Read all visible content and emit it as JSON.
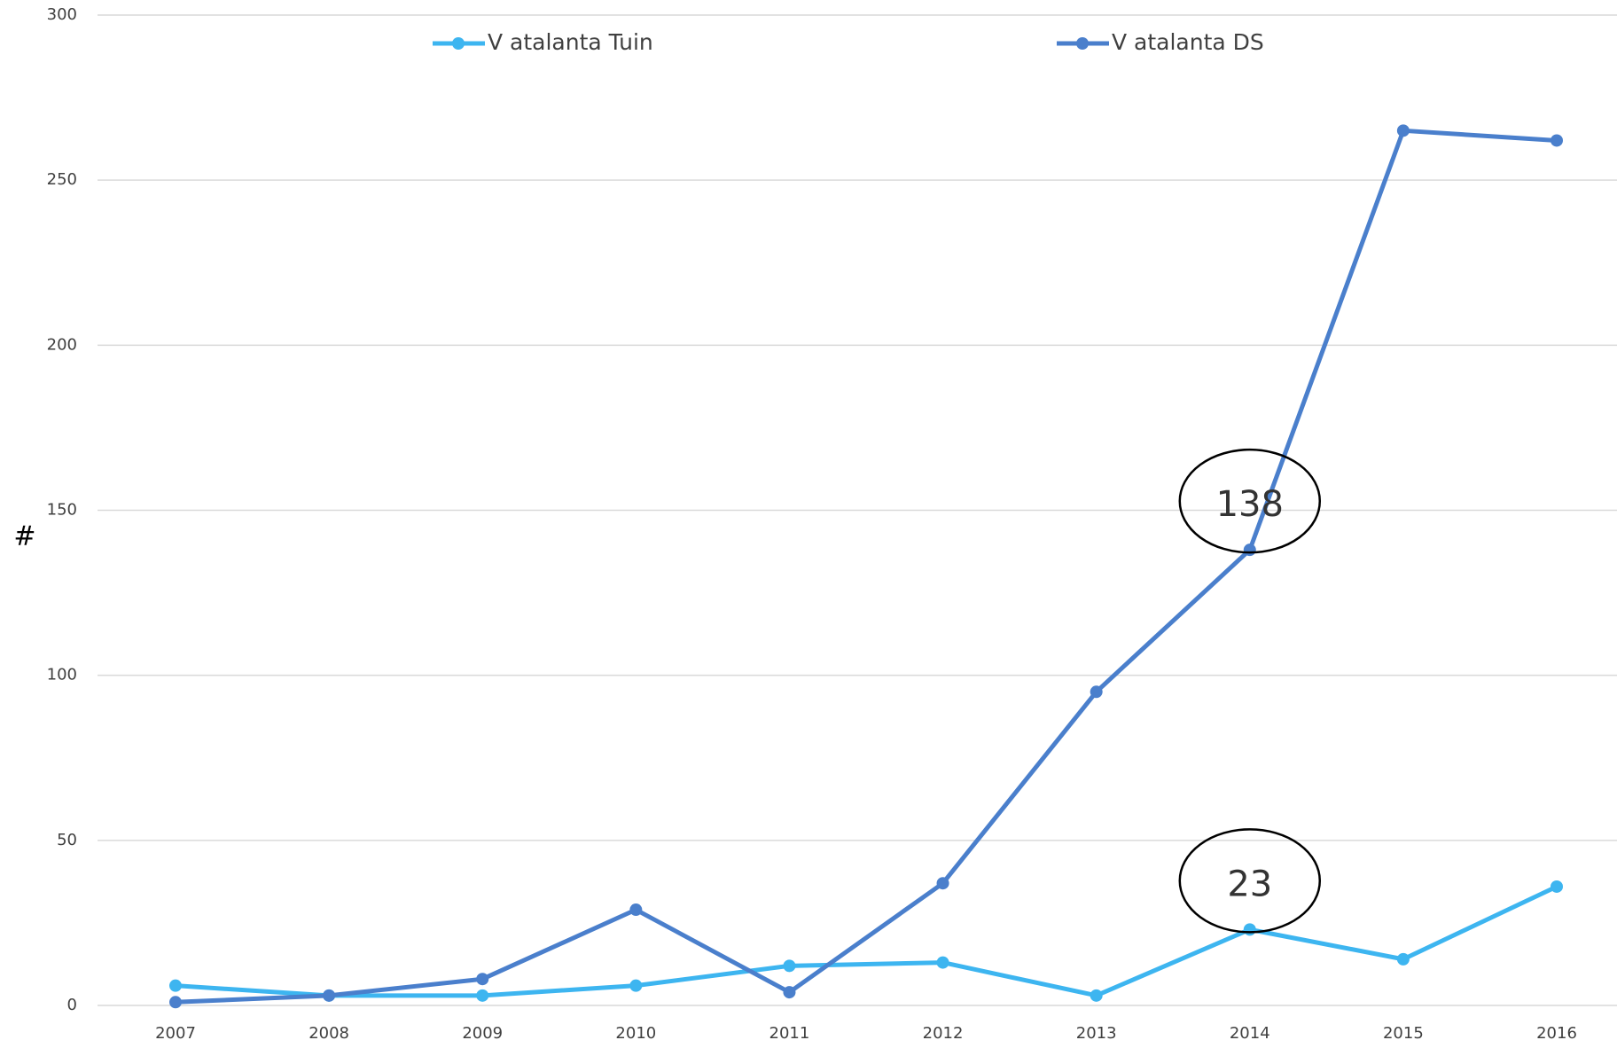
{
  "chart_data": {
    "type": "line",
    "ylabel": "#",
    "categories": [
      "2007",
      "2008",
      "2009",
      "2010",
      "2011",
      "2012",
      "2013",
      "2014",
      "2015",
      "2016"
    ],
    "series": [
      {
        "name": "V atalanta Tuin",
        "color": "#3db5f0",
        "values": [
          6,
          3,
          3,
          6,
          12,
          13,
          3,
          23,
          14,
          36
        ],
        "value_labels": [
          null,
          null,
          null,
          null,
          null,
          null,
          null,
          "23",
          null,
          null
        ]
      },
      {
        "name": "V atalanta DS",
        "color": "#4a7fcc",
        "values": [
          1,
          3,
          8,
          29,
          4,
          37,
          95,
          138,
          265,
          262
        ],
        "value_labels": [
          null,
          null,
          null,
          null,
          null,
          null,
          null,
          "138",
          null,
          null
        ]
      }
    ],
    "ylim": [
      0,
      300
    ],
    "yticks": [
      0,
      50,
      100,
      150,
      200,
      250,
      300
    ],
    "grid": true,
    "legend": "top"
  }
}
